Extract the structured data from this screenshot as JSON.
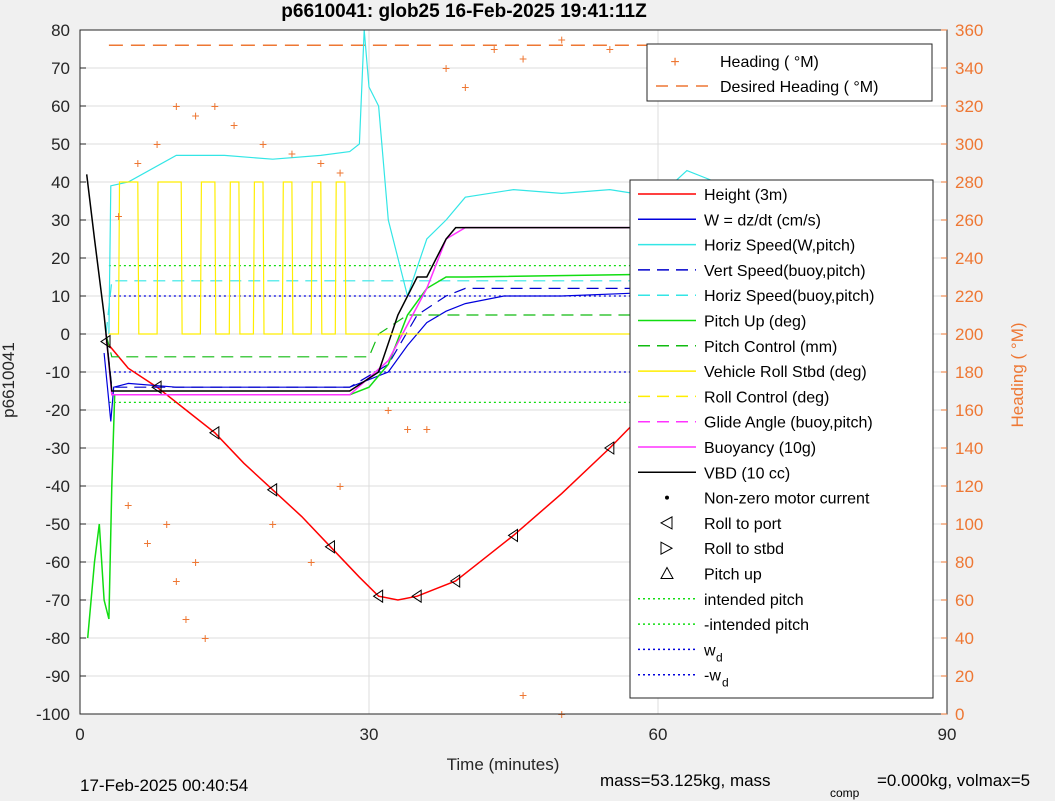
{
  "title": "p6610041: glob25 16-Feb-2025 19:41:11Z",
  "footer": {
    "left": "17-Feb-2025 00:40:54",
    "right_main": "mass=53.125kg, mass",
    "right_sub": "comp",
    "right_tail": "=0.000kg, volmax=5"
  },
  "colors": {
    "height": "#ff0000",
    "w": "#0000dd",
    "horiz_speed": "#33e6e6",
    "vert_speed_buoy": "#0000cc",
    "horiz_speed_buoy": "#33e6e6",
    "pitch_up": "#11dd11",
    "pitch_control": "#11bb11",
    "roll": "#ffee00",
    "roll_control": "#ffee00",
    "glide_angle": "#ff33ff",
    "buoyancy": "#ff33ff",
    "vbd": "#000000",
    "heading": "#ee7733",
    "grid": "#dcdcdc",
    "axis": "#262626"
  },
  "chart_data": {
    "type": "line",
    "xlabel": "Time (minutes)",
    "ylabel": "p6610041",
    "ylabel_right": "Heading (  °M)",
    "xlim": [
      0,
      90
    ],
    "ylim": [
      -100,
      80
    ],
    "ylim_right": [
      0,
      360
    ],
    "x_ticks": [
      "0",
      "30",
      "60",
      "90"
    ],
    "y_ticks": [
      "80",
      "70",
      "60",
      "50",
      "40",
      "30",
      "20",
      "10",
      "0",
      "-10",
      "-20",
      "-30",
      "-40",
      "-50",
      "-60",
      "-70",
      "-80",
      "-90",
      "-100"
    ],
    "y_ticks_right": [
      "360",
      "340",
      "320",
      "300",
      "280",
      "260",
      "240",
      "220",
      "200",
      "180",
      "160",
      "140",
      "120",
      "100",
      "80",
      "60",
      "40",
      "20",
      "0"
    ],
    "grid": true,
    "legend_top": [
      "Heading (  °M)",
      "Desired Heading (    °M)"
    ],
    "legend_main": [
      "Height (3m)",
      "W  = dz/dt (cm/s)",
      "Horiz Speed(W,pitch)",
      "Vert Speed(buoy,pitch)",
      "Horiz Speed(buoy,pitch)",
      "Pitch Up (deg)",
      "Pitch Control (mm)",
      "Vehicle Roll Stbd (deg)",
      "Roll Control (deg)",
      "Glide Angle (buoy,pitch)",
      "Buoyancy (10g)",
      "VBD (10 cc)",
      "Non-zero motor current",
      "Roll to port",
      "Roll to stbd",
      "Pitch up",
      "intended pitch",
      "-intended pitch",
      "w",
      "-w"
    ],
    "legend_w_sub": "d",
    "series": [
      {
        "name": "Height (3m)",
        "x": [
          2.7,
          5,
          8,
          11,
          14,
          17,
          20,
          23,
          26,
          29,
          31,
          33,
          35,
          37,
          39,
          41,
          45,
          50,
          55,
          60,
          64,
          67
        ],
        "values": [
          -2,
          -9,
          -14,
          -20,
          -26,
          -34,
          -41,
          -48,
          -56,
          -64,
          -69,
          -70,
          -69,
          -67,
          -65,
          -61,
          -53,
          -42,
          -30,
          -17,
          -8,
          -1
        ]
      },
      {
        "name": "W  = dz/dt (cm/s)",
        "x": [
          2.5,
          3.2,
          3.5,
          5,
          10,
          20,
          28,
          32,
          34,
          36,
          38,
          40,
          44,
          50,
          60,
          67
        ],
        "values": [
          -5,
          -23,
          -14,
          -13,
          -14,
          -14,
          -14,
          -10,
          -3,
          3,
          6,
          8,
          10,
          10,
          11,
          11
        ]
      },
      {
        "name": "Horiz Speed(W,pitch)",
        "x": [
          3,
          3.2,
          5,
          10,
          15,
          20,
          25,
          28,
          29,
          29.5,
          30,
          31,
          32,
          33,
          34,
          36,
          38,
          40,
          45,
          50,
          55,
          60,
          63,
          66
        ],
        "values": [
          0,
          39,
          40,
          47,
          47,
          46,
          47,
          48,
          50,
          80,
          65,
          60,
          30,
          20,
          10,
          25,
          30,
          36,
          38,
          37,
          38,
          36,
          43,
          40
        ]
      },
      {
        "name": "Vert Speed(buoy,pitch)",
        "x": [
          2.7,
          3.3,
          28,
          32,
          35,
          38,
          40,
          67
        ],
        "values": [
          0,
          -14,
          -14,
          -8,
          5,
          10,
          12,
          12
        ]
      },
      {
        "name": "Horiz Speed(buoy,pitch)",
        "x": [
          2.7,
          3.3,
          30,
          32,
          36,
          40,
          67
        ],
        "values": [
          0,
          14,
          14,
          14,
          14,
          14,
          14
        ]
      },
      {
        "name": "Pitch Up (deg)",
        "x": [
          0.8,
          1.5,
          2.0,
          2.5,
          3.0,
          3.3,
          3.6,
          5,
          15,
          28,
          30,
          32,
          34,
          36,
          38,
          40,
          67
        ],
        "values": [
          -80,
          -60,
          -50,
          -70,
          -75,
          -40,
          -16,
          -16,
          -16,
          -16,
          -14,
          -8,
          5,
          12,
          15,
          15,
          16
        ]
      },
      {
        "name": "Pitch Control (mm)",
        "x": [
          2.7,
          3.3,
          30,
          31,
          34,
          40,
          67
        ],
        "values": [
          0,
          -6,
          -6,
          0,
          5,
          5,
          5
        ]
      },
      {
        "name": "Buoyancy (10g)",
        "x": [
          2.7,
          3.3,
          28,
          32,
          36,
          38,
          40,
          67
        ],
        "values": [
          0,
          -16,
          -16,
          -7,
          12,
          25,
          28,
          28
        ]
      },
      {
        "name": "VBD (10 cc)",
        "x": [
          0.7,
          1.5,
          2.5,
          3.3,
          28,
          31,
          33,
          35,
          36,
          38,
          39,
          67
        ],
        "values": [
          42,
          25,
          5,
          -15,
          -15,
          -10,
          5,
          15,
          15,
          25,
          28,
          28
        ]
      }
    ],
    "reference_lines": {
      "intended_pitch": 18,
      "neg_intended_pitch": -18,
      "wd": 10,
      "neg_wd": -10
    },
    "desired_heading": 352
  }
}
